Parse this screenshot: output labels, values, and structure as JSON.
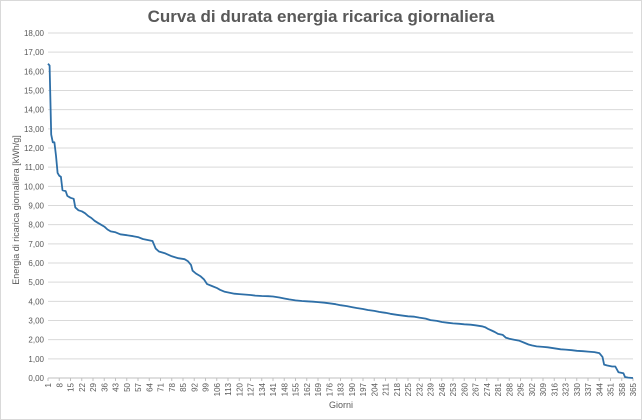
{
  "chart_data": {
    "type": "line",
    "title": "Curva di durata energia ricarica giornaliera",
    "xlabel": "Giorni",
    "ylabel": "Energia di ricarica giornaliera [kWh/g]",
    "xlim": [
      1,
      365
    ],
    "ylim": [
      0,
      18
    ],
    "y_ticks": [
      "0,00",
      "1,00",
      "2,00",
      "3,00",
      "4,00",
      "5,00",
      "6,00",
      "7,00",
      "8,00",
      "9,00",
      "10,00",
      "11,00",
      "12,00",
      "13,00",
      "14,00",
      "15,00",
      "16,00",
      "17,00",
      "18,00"
    ],
    "x_ticks": [
      1,
      8,
      15,
      22,
      29,
      36,
      43,
      50,
      57,
      64,
      71,
      78,
      85,
      92,
      99,
      106,
      113,
      120,
      127,
      134,
      141,
      148,
      155,
      162,
      169,
      176,
      183,
      190,
      197,
      204,
      211,
      218,
      225,
      232,
      239,
      246,
      253,
      260,
      267,
      274,
      281,
      288,
      295,
      302,
      309,
      316,
      323,
      330,
      337,
      344,
      351,
      358,
      365
    ],
    "grid": true,
    "legend": "none",
    "series": [
      {
        "color": "#2e6fa7",
        "points": [
          [
            1,
            16.4
          ],
          [
            2,
            16.3
          ],
          [
            3,
            12.7
          ],
          [
            4,
            12.3
          ],
          [
            5,
            12.3
          ],
          [
            6,
            11.6
          ],
          [
            7,
            10.7
          ],
          [
            8,
            10.55
          ],
          [
            9,
            10.5
          ],
          [
            10,
            9.8
          ],
          [
            12,
            9.75
          ],
          [
            13,
            9.5
          ],
          [
            15,
            9.4
          ],
          [
            17,
            9.35
          ],
          [
            18,
            8.9
          ],
          [
            20,
            8.75
          ],
          [
            22,
            8.7
          ],
          [
            24,
            8.6
          ],
          [
            26,
            8.45
          ],
          [
            28,
            8.35
          ],
          [
            30,
            8.2
          ],
          [
            32,
            8.1
          ],
          [
            34,
            8.0
          ],
          [
            36,
            7.9
          ],
          [
            38,
            7.75
          ],
          [
            40,
            7.65
          ],
          [
            43,
            7.6
          ],
          [
            46,
            7.5
          ],
          [
            50,
            7.45
          ],
          [
            54,
            7.4
          ],
          [
            57,
            7.35
          ],
          [
            60,
            7.25
          ],
          [
            63,
            7.2
          ],
          [
            66,
            7.15
          ],
          [
            67,
            6.95
          ],
          [
            68,
            6.75
          ],
          [
            70,
            6.6
          ],
          [
            74,
            6.5
          ],
          [
            78,
            6.35
          ],
          [
            82,
            6.25
          ],
          [
            86,
            6.2
          ],
          [
            88,
            6.1
          ],
          [
            90,
            5.9
          ],
          [
            91,
            5.6
          ],
          [
            93,
            5.45
          ],
          [
            96,
            5.3
          ],
          [
            98,
            5.15
          ],
          [
            100,
            4.9
          ],
          [
            103,
            4.8
          ],
          [
            106,
            4.7
          ],
          [
            108,
            4.6
          ],
          [
            111,
            4.5
          ],
          [
            114,
            4.45
          ],
          [
            117,
            4.4
          ],
          [
            120,
            4.38
          ],
          [
            124,
            4.35
          ],
          [
            127,
            4.33
          ],
          [
            130,
            4.3
          ],
          [
            134,
            4.28
          ],
          [
            138,
            4.27
          ],
          [
            141,
            4.25
          ],
          [
            145,
            4.2
          ],
          [
            148,
            4.15
          ],
          [
            151,
            4.1
          ],
          [
            155,
            4.05
          ],
          [
            159,
            4.02
          ],
          [
            162,
            4.0
          ],
          [
            166,
            3.98
          ],
          [
            169,
            3.96
          ],
          [
            173,
            3.93
          ],
          [
            176,
            3.9
          ],
          [
            180,
            3.85
          ],
          [
            183,
            3.8
          ],
          [
            187,
            3.75
          ],
          [
            190,
            3.7
          ],
          [
            193,
            3.65
          ],
          [
            197,
            3.6
          ],
          [
            200,
            3.55
          ],
          [
            204,
            3.5
          ],
          [
            207,
            3.45
          ],
          [
            211,
            3.4
          ],
          [
            214,
            3.35
          ],
          [
            218,
            3.3
          ],
          [
            222,
            3.25
          ],
          [
            225,
            3.22
          ],
          [
            229,
            3.2
          ],
          [
            232,
            3.15
          ],
          [
            236,
            3.1
          ],
          [
            239,
            3.02
          ],
          [
            243,
            2.98
          ],
          [
            246,
            2.92
          ],
          [
            250,
            2.88
          ],
          [
            253,
            2.85
          ],
          [
            257,
            2.83
          ],
          [
            260,
            2.8
          ],
          [
            264,
            2.78
          ],
          [
            267,
            2.75
          ],
          [
            271,
            2.7
          ],
          [
            273,
            2.65
          ],
          [
            275,
            2.55
          ],
          [
            277,
            2.48
          ],
          [
            279,
            2.4
          ],
          [
            281,
            2.3
          ],
          [
            284,
            2.25
          ],
          [
            286,
            2.1
          ],
          [
            288,
            2.05
          ],
          [
            291,
            2.0
          ],
          [
            294,
            1.95
          ],
          [
            297,
            1.85
          ],
          [
            300,
            1.75
          ],
          [
            302,
            1.7
          ],
          [
            305,
            1.65
          ],
          [
            309,
            1.62
          ],
          [
            312,
            1.6
          ],
          [
            316,
            1.55
          ],
          [
            320,
            1.5
          ],
          [
            323,
            1.48
          ],
          [
            327,
            1.45
          ],
          [
            330,
            1.42
          ],
          [
            334,
            1.4
          ],
          [
            337,
            1.38
          ],
          [
            341,
            1.35
          ],
          [
            344,
            1.3
          ],
          [
            346,
            1.1
          ],
          [
            347,
            0.7
          ],
          [
            349,
            0.65
          ],
          [
            352,
            0.6
          ],
          [
            354,
            0.6
          ],
          [
            356,
            0.3
          ],
          [
            359,
            0.25
          ],
          [
            360,
            0.05
          ],
          [
            362,
            0.02
          ],
          [
            365,
            0.0
          ]
        ]
      }
    ]
  }
}
